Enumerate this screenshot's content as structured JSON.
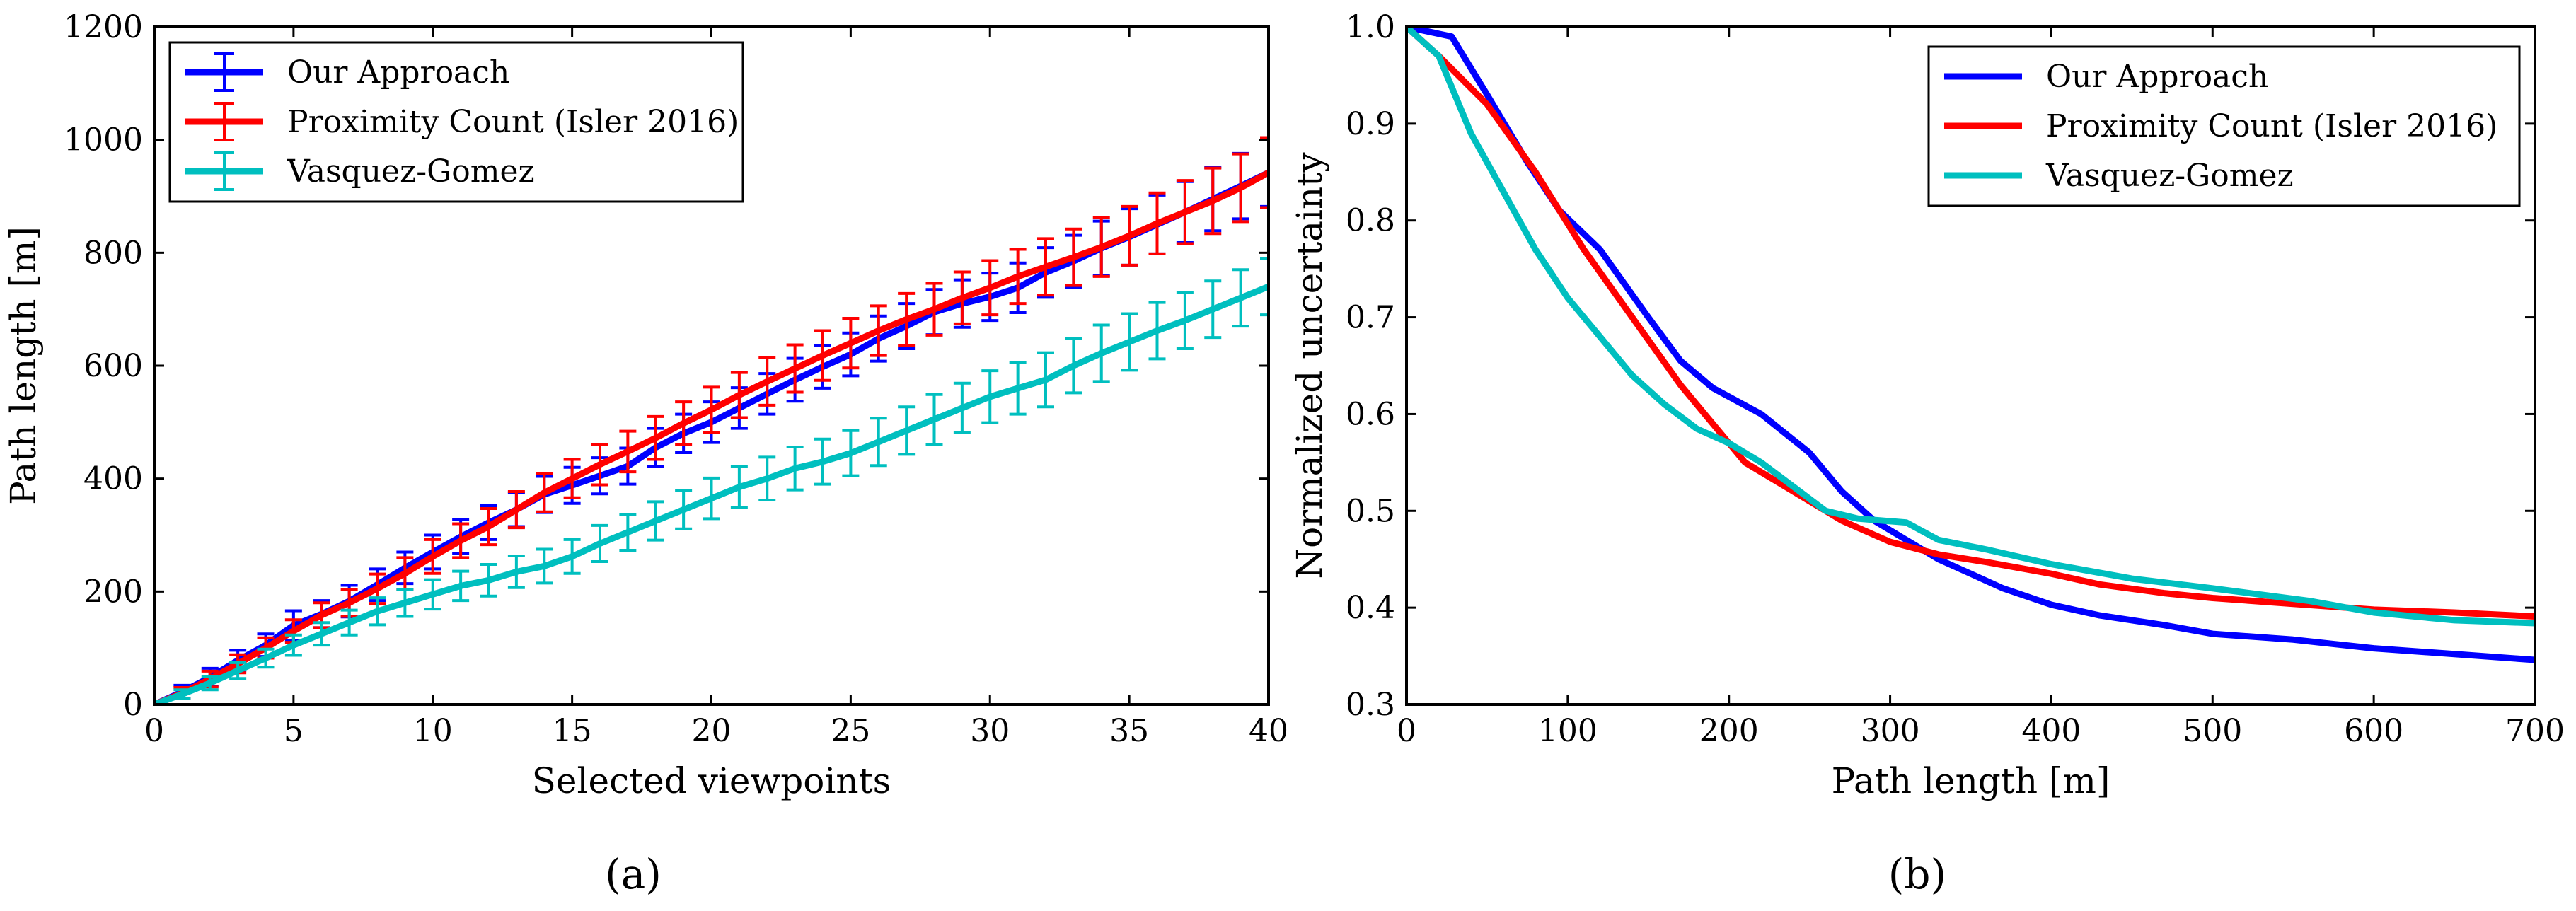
{
  "chart_data": [
    {
      "panel_label": "(a)",
      "type": "line",
      "xlabel": "Selected viewpoints",
      "ylabel": "Path length [m]",
      "xlim": [
        0,
        40
      ],
      "ylim": [
        0,
        1200
      ],
      "xticks": [
        0,
        5,
        10,
        15,
        20,
        25,
        30,
        35,
        40
      ],
      "yticks": [
        0,
        200,
        400,
        600,
        800,
        1000,
        1200
      ],
      "legend_position": "top-left",
      "error_bars": true,
      "series": [
        {
          "name": "Our Approach",
          "color": "#0000ff",
          "x": [
            1,
            2,
            3,
            4,
            5,
            6,
            7,
            8,
            9,
            10,
            11,
            12,
            13,
            14,
            15,
            16,
            17,
            18,
            19,
            20,
            21,
            22,
            23,
            24,
            25,
            26,
            27,
            28,
            29,
            30,
            31,
            32,
            33,
            34,
            35,
            36,
            37,
            38,
            39,
            40
          ],
          "y": [
            22,
            48,
            78,
            105,
            140,
            160,
            183,
            212,
            242,
            270,
            297,
            322,
            345,
            372,
            388,
            405,
            422,
            455,
            480,
            500,
            525,
            550,
            575,
            598,
            620,
            648,
            670,
            695,
            710,
            722,
            738,
            765,
            785,
            808,
            828,
            850,
            872,
            895,
            918,
            942
          ],
          "err": [
            12,
            16,
            18,
            20,
            26,
            24,
            28,
            28,
            28,
            30,
            30,
            30,
            30,
            32,
            32,
            32,
            32,
            34,
            34,
            36,
            36,
            36,
            38,
            38,
            38,
            40,
            40,
            40,
            42,
            42,
            44,
            44,
            46,
            48,
            50,
            52,
            54,
            56,
            58,
            60
          ]
        },
        {
          "name": "Proximity Count (Isler 2016)",
          "color": "#ff0000",
          "x": [
            1,
            2,
            3,
            4,
            5,
            6,
            7,
            8,
            9,
            10,
            11,
            12,
            13,
            14,
            15,
            16,
            17,
            18,
            19,
            20,
            21,
            22,
            23,
            24,
            25,
            26,
            27,
            28,
            29,
            30,
            31,
            32,
            33,
            34,
            35,
            36,
            37,
            38,
            39,
            40
          ],
          "y": [
            20,
            45,
            72,
            100,
            130,
            158,
            180,
            205,
            232,
            262,
            290,
            315,
            345,
            375,
            400,
            425,
            448,
            472,
            498,
            522,
            548,
            572,
            595,
            618,
            640,
            662,
            682,
            700,
            720,
            738,
            758,
            775,
            792,
            810,
            830,
            852,
            872,
            892,
            915,
            942
          ],
          "err": [
            10,
            14,
            16,
            18,
            20,
            22,
            24,
            26,
            28,
            30,
            30,
            32,
            32,
            34,
            34,
            36,
            36,
            38,
            38,
            40,
            40,
            42,
            42,
            44,
            44,
            44,
            46,
            46,
            46,
            48,
            48,
            50,
            50,
            52,
            52,
            54,
            56,
            58,
            60,
            62
          ]
        },
        {
          "name": "Vasquez-Gomez",
          "color": "#00bfbf",
          "x": [
            1,
            2,
            3,
            4,
            5,
            6,
            7,
            8,
            9,
            10,
            11,
            12,
            13,
            14,
            15,
            16,
            17,
            18,
            19,
            20,
            21,
            22,
            23,
            24,
            25,
            26,
            27,
            28,
            29,
            30,
            31,
            32,
            33,
            34,
            35,
            36,
            37,
            38,
            39,
            40
          ],
          "y": [
            18,
            38,
            60,
            82,
            105,
            125,
            145,
            165,
            180,
            195,
            210,
            220,
            235,
            245,
            262,
            285,
            305,
            325,
            345,
            365,
            385,
            400,
            418,
            430,
            445,
            465,
            485,
            505,
            525,
            545,
            560,
            575,
            600,
            622,
            642,
            662,
            680,
            700,
            720,
            740
          ],
          "err": [
            8,
            12,
            14,
            16,
            18,
            20,
            22,
            24,
            24,
            26,
            26,
            28,
            28,
            30,
            30,
            32,
            32,
            34,
            34,
            36,
            36,
            38,
            38,
            40,
            40,
            42,
            42,
            44,
            44,
            46,
            46,
            48,
            48,
            50,
            50,
            50,
            50,
            50,
            50,
            50
          ]
        }
      ]
    },
    {
      "panel_label": "(b)",
      "type": "line",
      "xlabel": "Path length [m]",
      "ylabel": "Normalized uncertainty",
      "xlim": [
        0,
        700
      ],
      "ylim": [
        0.3,
        1.0
      ],
      "xticks": [
        0,
        100,
        200,
        300,
        400,
        500,
        600,
        700
      ],
      "yticks": [
        0.3,
        0.4,
        0.5,
        0.6,
        0.7,
        0.8,
        0.9,
        1.0
      ],
      "ytick_labels": [
        "0.3",
        "0.4",
        "0.5",
        "0.6",
        "0.7",
        "0.8",
        "0.9",
        "1.0"
      ],
      "legend_position": "top-right",
      "error_bars": false,
      "series": [
        {
          "name": "Our Approach",
          "color": "#0000ff",
          "x": [
            0,
            28,
            50,
            75,
            95,
            120,
            150,
            170,
            190,
            220,
            250,
            270,
            290,
            310,
            330,
            350,
            370,
            400,
            430,
            470,
            500,
            550,
            600,
            650,
            700
          ],
          "y": [
            1.0,
            0.99,
            0.93,
            0.86,
            0.81,
            0.77,
            0.7,
            0.655,
            0.627,
            0.6,
            0.56,
            0.52,
            0.49,
            0.47,
            0.45,
            0.435,
            0.42,
            0.403,
            0.392,
            0.382,
            0.373,
            0.367,
            0.358,
            0.352,
            0.346
          ]
        },
        {
          "name": "Proximity Count (Isler 2016)",
          "color": "#ff0000",
          "x": [
            0,
            20,
            50,
            80,
            110,
            140,
            170,
            195,
            210,
            240,
            270,
            300,
            330,
            360,
            400,
            430,
            470,
            500,
            550,
            600,
            650,
            700
          ],
          "y": [
            1.0,
            0.97,
            0.92,
            0.85,
            0.77,
            0.7,
            0.63,
            0.58,
            0.55,
            0.52,
            0.49,
            0.468,
            0.455,
            0.447,
            0.435,
            0.424,
            0.415,
            0.41,
            0.404,
            0.398,
            0.395,
            0.391
          ]
        },
        {
          "name": "Vasquez-Gomez",
          "color": "#00bfbf",
          "x": [
            0,
            20,
            40,
            60,
            80,
            100,
            120,
            140,
            160,
            180,
            200,
            220,
            240,
            260,
            280,
            310,
            330,
            360,
            400,
            450,
            500,
            560,
            600,
            650,
            700
          ],
          "y": [
            1.0,
            0.97,
            0.89,
            0.83,
            0.77,
            0.72,
            0.68,
            0.64,
            0.61,
            0.585,
            0.57,
            0.55,
            0.525,
            0.5,
            0.492,
            0.488,
            0.47,
            0.46,
            0.445,
            0.43,
            0.42,
            0.407,
            0.395,
            0.387,
            0.384
          ]
        }
      ]
    }
  ]
}
